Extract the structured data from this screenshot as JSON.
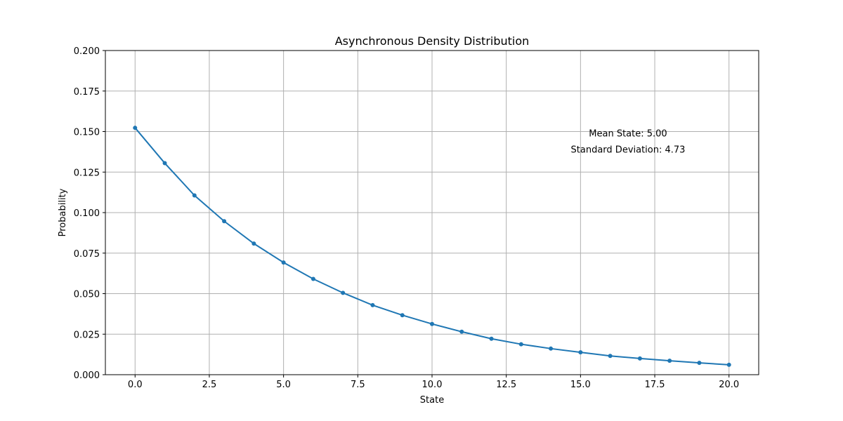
{
  "chart_data": {
    "type": "line",
    "title": "Asynchronous Density Distribution",
    "xlabel": "State",
    "ylabel": "Probability",
    "xlim": [
      -1,
      21
    ],
    "ylim": [
      0,
      0.2
    ],
    "x_ticks": [
      "0.0",
      "2.5",
      "5.0",
      "7.5",
      "10.0",
      "12.5",
      "15.0",
      "17.5",
      "20.0"
    ],
    "y_ticks": [
      "0.000",
      "0.025",
      "0.050",
      "0.075",
      "0.100",
      "0.125",
      "0.150",
      "0.175",
      "0.200"
    ],
    "grid": true,
    "series": [
      {
        "color": "#1f77b4",
        "marker": "dot",
        "x": [
          0,
          1,
          2,
          3,
          4,
          5,
          6,
          7,
          8,
          9,
          10,
          11,
          12,
          13,
          14,
          15,
          16,
          17,
          18,
          19,
          20
        ],
        "y": [
          0.1523,
          0.1305,
          0.1106,
          0.0947,
          0.0809,
          0.0692,
          0.0591,
          0.0505,
          0.0429,
          0.0367,
          0.0313,
          0.0265,
          0.0222,
          0.0188,
          0.0161,
          0.0138,
          0.0116,
          0.01,
          0.0086,
          0.0073,
          0.0061
        ]
      }
    ],
    "annotations": [
      {
        "text": "Mean State: 5.00",
        "x": 16.6,
        "y": 0.147
      },
      {
        "text": "Standard Deviation: 4.73",
        "x": 16.6,
        "y": 0.137
      }
    ]
  }
}
